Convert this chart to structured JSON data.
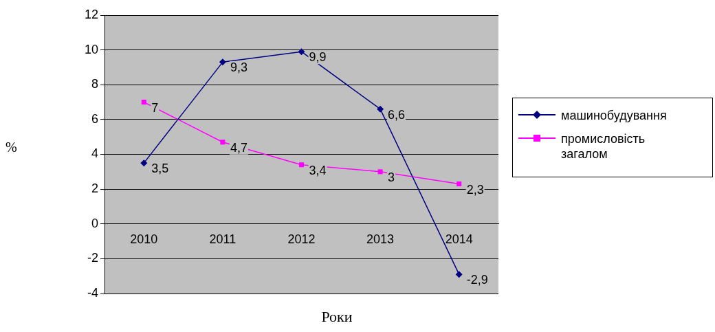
{
  "chart_data": {
    "type": "line",
    "xlabel": "Роки",
    "ylabel": "%",
    "categories": [
      "2010",
      "2011",
      "2012",
      "2013",
      "2014"
    ],
    "series": [
      {
        "name": "машинобудування",
        "color": "#000080",
        "marker": "diamond",
        "values": [
          3.5,
          9.3,
          9.9,
          6.6,
          -2.9
        ],
        "value_labels": [
          "3,5",
          "9,3",
          "9,9",
          "6,6",
          "-2,9"
        ]
      },
      {
        "name": "промисловість загалом",
        "color": "#ff00ff",
        "marker": "square",
        "values": [
          7,
          4.7,
          3.4,
          3,
          2.3
        ],
        "value_labels": [
          "7",
          "4,7",
          "3,4",
          "3",
          "2,3"
        ]
      }
    ],
    "ylim": [
      -4,
      12
    ],
    "yticks": [
      -4,
      -2,
      0,
      2,
      4,
      6,
      8,
      10,
      12
    ],
    "grid": "y",
    "legend": "right",
    "line_style": "solid"
  }
}
